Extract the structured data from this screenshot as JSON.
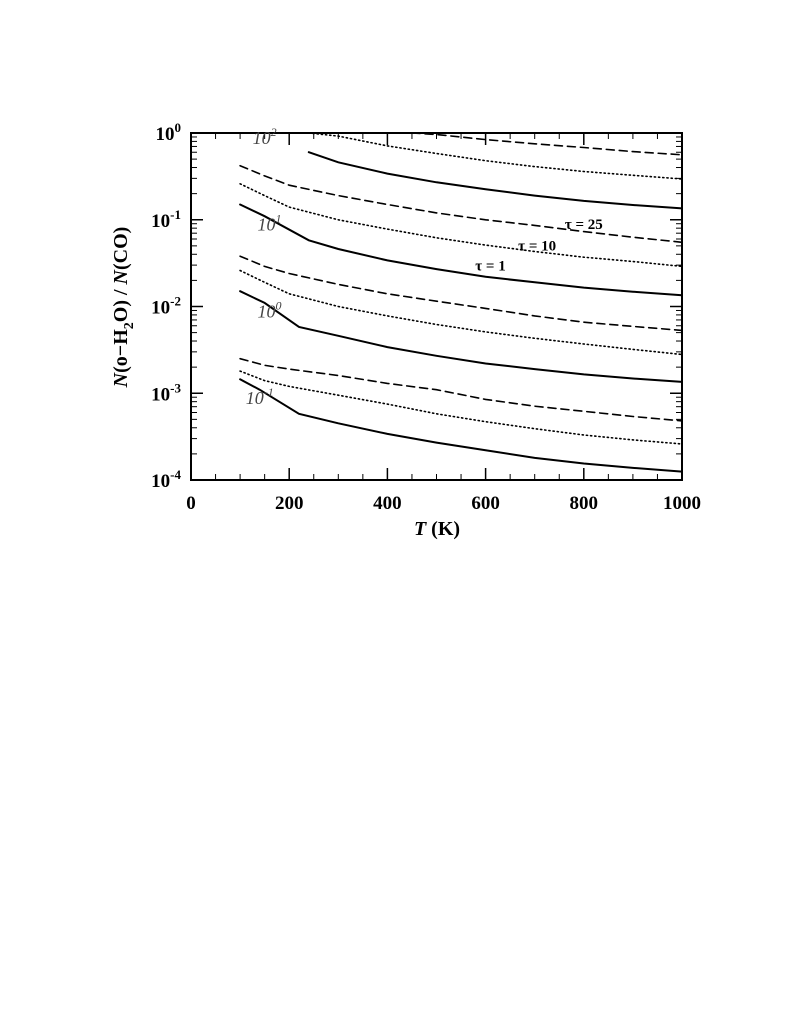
{
  "chart_data": {
    "type": "line",
    "xlabel": {
      "italic": "T",
      "rest": " (K)"
    },
    "ylabel": {
      "part1": "N",
      "part2": "(o−H",
      "sub": "2",
      "part3": "O) / ",
      "part4": "N",
      "part5": "(CO)"
    },
    "xlim": [
      0,
      1000
    ],
    "ylim": [
      0.0001,
      1
    ],
    "yscale": "log",
    "x_ticks": [
      0,
      200,
      400,
      600,
      800,
      1000
    ],
    "x_tick_labels": [
      "0",
      "200",
      "400",
      "600",
      "800",
      "1000"
    ],
    "y_ticks": [
      {
        "value": 1,
        "base": "10",
        "exp": "0"
      },
      {
        "value": 0.1,
        "base": "10",
        "exp": "-1"
      },
      {
        "value": 0.01,
        "base": "10",
        "exp": "-2"
      },
      {
        "value": 0.001,
        "base": "10",
        "exp": "-3"
      },
      {
        "value": 0.0001,
        "base": "10",
        "exp": "-4"
      }
    ],
    "contour_labels": [
      {
        "base": "10",
        "exp": "2",
        "x": 150,
        "y": 0.88
      },
      {
        "base": "10",
        "exp": "1",
        "x": 160,
        "y": 0.088
      },
      {
        "base": "10",
        "exp": "0",
        "x": 160,
        "y": 0.0088
      },
      {
        "base": "10",
        "exp": "-1",
        "x": 140,
        "y": 0.00088
      }
    ],
    "tau_labels": [
      {
        "text": "τ = 25",
        "x": 800,
        "y": 0.078
      },
      {
        "text": "τ = 10",
        "x": 705,
        "y": 0.044
      },
      {
        "text": "τ = 1",
        "x": 610,
        "y": 0.026
      }
    ],
    "series": [
      {
        "group": "10^2",
        "style": "solid",
        "points": [
          [
            240,
            0.6
          ],
          [
            300,
            0.46
          ],
          [
            400,
            0.34
          ],
          [
            500,
            0.27
          ],
          [
            600,
            0.225
          ],
          [
            700,
            0.19
          ],
          [
            800,
            0.165
          ],
          [
            900,
            0.148
          ],
          [
            1000,
            0.135
          ]
        ]
      },
      {
        "group": "10^2",
        "style": "dotted",
        "points": [
          [
            240,
            1.0
          ],
          [
            300,
            0.92
          ],
          [
            400,
            0.71
          ],
          [
            500,
            0.58
          ],
          [
            600,
            0.48
          ],
          [
            700,
            0.41
          ],
          [
            800,
            0.36
          ],
          [
            900,
            0.325
          ],
          [
            1000,
            0.295
          ]
        ]
      },
      {
        "group": "10^2",
        "style": "dashed",
        "points": [
          [
            450,
            1.0
          ],
          [
            500,
            0.96
          ],
          [
            600,
            0.84
          ],
          [
            700,
            0.75
          ],
          [
            800,
            0.68
          ],
          [
            900,
            0.61
          ],
          [
            1000,
            0.56
          ]
        ]
      },
      {
        "group": "10^1",
        "style": "solid",
        "points": [
          [
            100,
            0.15
          ],
          [
            150,
            0.11
          ],
          [
            240,
            0.058
          ],
          [
            300,
            0.046
          ],
          [
            400,
            0.034
          ],
          [
            500,
            0.027
          ],
          [
            600,
            0.022
          ],
          [
            700,
            0.019
          ],
          [
            800,
            0.0165
          ],
          [
            900,
            0.0148
          ],
          [
            1000,
            0.0135
          ]
        ]
      },
      {
        "group": "10^1",
        "style": "dotted",
        "points": [
          [
            100,
            0.26
          ],
          [
            150,
            0.19
          ],
          [
            200,
            0.14
          ],
          [
            300,
            0.1
          ],
          [
            400,
            0.078
          ],
          [
            500,
            0.062
          ],
          [
            600,
            0.051
          ],
          [
            700,
            0.043
          ],
          [
            800,
            0.037
          ],
          [
            900,
            0.033
          ],
          [
            1000,
            0.029
          ]
        ]
      },
      {
        "group": "10^1",
        "style": "dashed",
        "points": [
          [
            100,
            0.42
          ],
          [
            150,
            0.32
          ],
          [
            200,
            0.25
          ],
          [
            300,
            0.19
          ],
          [
            400,
            0.15
          ],
          [
            500,
            0.12
          ],
          [
            600,
            0.1
          ],
          [
            700,
            0.086
          ],
          [
            800,
            0.073
          ],
          [
            900,
            0.063
          ],
          [
            1000,
            0.055
          ]
        ]
      },
      {
        "group": "10^0",
        "style": "solid",
        "points": [
          [
            100,
            0.015
          ],
          [
            150,
            0.011
          ],
          [
            220,
            0.0058
          ],
          [
            300,
            0.0046
          ],
          [
            400,
            0.0034
          ],
          [
            500,
            0.0027
          ],
          [
            600,
            0.0022
          ],
          [
            700,
            0.0019
          ],
          [
            800,
            0.00165
          ],
          [
            900,
            0.00148
          ],
          [
            1000,
            0.00135
          ]
        ]
      },
      {
        "group": "10^0",
        "style": "dotted",
        "points": [
          [
            100,
            0.026
          ],
          [
            150,
            0.019
          ],
          [
            200,
            0.014
          ],
          [
            300,
            0.01
          ],
          [
            400,
            0.0078
          ],
          [
            500,
            0.0062
          ],
          [
            600,
            0.0051
          ],
          [
            700,
            0.0043
          ],
          [
            800,
            0.0037
          ],
          [
            900,
            0.0032
          ],
          [
            1000,
            0.0028
          ]
        ]
      },
      {
        "group": "10^0",
        "style": "dashed",
        "points": [
          [
            100,
            0.038
          ],
          [
            150,
            0.029
          ],
          [
            200,
            0.024
          ],
          [
            300,
            0.018
          ],
          [
            400,
            0.014
          ],
          [
            500,
            0.0115
          ],
          [
            600,
            0.0095
          ],
          [
            700,
            0.0078
          ],
          [
            800,
            0.0066
          ],
          [
            900,
            0.0059
          ],
          [
            1000,
            0.0053
          ]
        ]
      },
      {
        "group": "10^-1",
        "style": "solid",
        "points": [
          [
            100,
            0.00145
          ],
          [
            140,
            0.0011
          ],
          [
            220,
            0.00058
          ],
          [
            300,
            0.00045
          ],
          [
            400,
            0.00034
          ],
          [
            500,
            0.00027
          ],
          [
            600,
            0.00022
          ],
          [
            700,
            0.00018
          ],
          [
            800,
            0.000155
          ],
          [
            900,
            0.000138
          ],
          [
            1000,
            0.000125
          ]
        ]
      },
      {
        "group": "10^-1",
        "style": "dotted",
        "points": [
          [
            100,
            0.0018
          ],
          [
            150,
            0.0014
          ],
          [
            200,
            0.0012
          ],
          [
            300,
            0.00095
          ],
          [
            400,
            0.00075
          ],
          [
            500,
            0.00058
          ],
          [
            600,
            0.00047
          ],
          [
            700,
            0.00039
          ],
          [
            800,
            0.00033
          ],
          [
            900,
            0.00029
          ],
          [
            1000,
            0.00026
          ]
        ]
      },
      {
        "group": "10^-1",
        "style": "dashed",
        "points": [
          [
            100,
            0.0025
          ],
          [
            150,
            0.0021
          ],
          [
            200,
            0.0019
          ],
          [
            300,
            0.0016
          ],
          [
            400,
            0.0013
          ],
          [
            500,
            0.0011
          ],
          [
            600,
            0.00085
          ],
          [
            700,
            0.00071
          ],
          [
            800,
            0.00062
          ],
          [
            900,
            0.00054
          ],
          [
            1000,
            0.00048
          ]
        ]
      }
    ]
  }
}
